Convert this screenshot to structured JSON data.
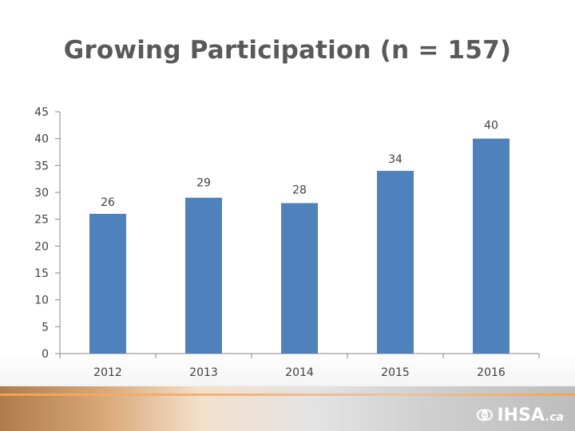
{
  "slide": {
    "title": "Growing Participation (n = 157)"
  },
  "footer": {
    "logo_text": "IHSA",
    "logo_suffix": ".ca",
    "logo_icon": "ihsa-leaf-icon"
  },
  "chart_data": {
    "type": "bar",
    "title": "",
    "xlabel": "",
    "ylabel": "",
    "categories": [
      "2012",
      "2013",
      "2014",
      "2015",
      "2016"
    ],
    "values": [
      26,
      29,
      28,
      34,
      40
    ],
    "data_labels": [
      "26",
      "29",
      "28",
      "34",
      "40"
    ],
    "ylim": [
      0,
      45
    ],
    "yticks": [
      0,
      5,
      10,
      15,
      20,
      25,
      30,
      35,
      40,
      45
    ],
    "grid": false,
    "legend": "none",
    "bar_color": "#4f81bd"
  }
}
